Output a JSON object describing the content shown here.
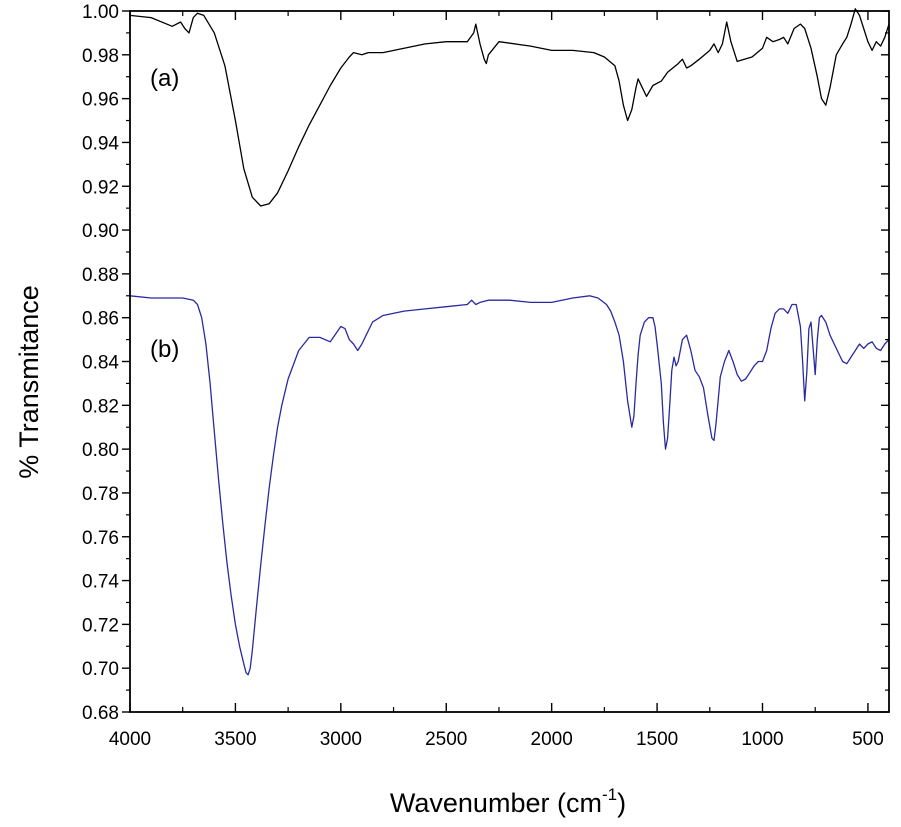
{
  "chart_data": {
    "type": "line",
    "xlabel": "Wavenumber (cm",
    "xlabel_sup": "-1",
    "xlabel_close": ")",
    "ylabel": "% Transmitance",
    "xlim": [
      4000,
      400
    ],
    "ylim": [
      0.68,
      1.0
    ],
    "x_reversed": true,
    "grid": false,
    "x_ticks": [
      4000,
      3500,
      3000,
      2500,
      2000,
      1500,
      1000,
      500
    ],
    "x_tick_labels": [
      "4000",
      "3500",
      "3000",
      "2500",
      "2000",
      "1500",
      "1000",
      "500"
    ],
    "y_ticks": [
      0.68,
      0.7,
      0.72,
      0.74,
      0.76,
      0.78,
      0.8,
      0.82,
      0.84,
      0.86,
      0.88,
      0.9,
      0.92,
      0.94,
      0.96,
      0.98,
      1.0
    ],
    "y_tick_labels": [
      "0.68",
      "0.70",
      "0.72",
      "0.74",
      "0.76",
      "0.78",
      "0.80",
      "0.82",
      "0.84",
      "0.86",
      "0.88",
      "0.90",
      "0.92",
      "0.94",
      "0.96",
      "0.98",
      "1.00"
    ],
    "series": [
      {
        "label": "(a)",
        "color": "#000000",
        "x": [
          4000,
          3900,
          3800,
          3760,
          3740,
          3720,
          3700,
          3680,
          3650,
          3600,
          3550,
          3500,
          3460,
          3420,
          3380,
          3340,
          3300,
          3250,
          3200,
          3150,
          3100,
          3050,
          3000,
          2960,
          2940,
          2900,
          2870,
          2800,
          2700,
          2600,
          2500,
          2400,
          2370,
          2360,
          2340,
          2320,
          2310,
          2300,
          2250,
          2100,
          2000,
          1900,
          1800,
          1750,
          1700,
          1680,
          1660,
          1640,
          1620,
          1600,
          1590,
          1570,
          1550,
          1520,
          1480,
          1450,
          1400,
          1380,
          1360,
          1340,
          1300,
          1250,
          1230,
          1210,
          1190,
          1170,
          1150,
          1120,
          1050,
          1000,
          980,
          950,
          920,
          900,
          880,
          850,
          820,
          800,
          770,
          740,
          720,
          700,
          680,
          650,
          620,
          600,
          580,
          560,
          540,
          520,
          500,
          480,
          460,
          440,
          420,
          400
        ],
        "y": [
          0.998,
          0.997,
          0.993,
          0.995,
          0.992,
          0.99,
          0.997,
          0.999,
          0.998,
          0.99,
          0.975,
          0.95,
          0.928,
          0.915,
          0.911,
          0.912,
          0.917,
          0.927,
          0.938,
          0.948,
          0.957,
          0.966,
          0.974,
          0.979,
          0.981,
          0.98,
          0.981,
          0.981,
          0.983,
          0.985,
          0.986,
          0.986,
          0.99,
          0.994,
          0.985,
          0.978,
          0.976,
          0.98,
          0.986,
          0.984,
          0.982,
          0.982,
          0.981,
          0.979,
          0.975,
          0.968,
          0.957,
          0.95,
          0.955,
          0.965,
          0.969,
          0.965,
          0.961,
          0.966,
          0.968,
          0.972,
          0.976,
          0.978,
          0.974,
          0.975,
          0.978,
          0.982,
          0.985,
          0.981,
          0.985,
          0.995,
          0.986,
          0.977,
          0.979,
          0.983,
          0.988,
          0.986,
          0.987,
          0.988,
          0.985,
          0.992,
          0.994,
          0.992,
          0.983,
          0.97,
          0.96,
          0.957,
          0.965,
          0.98,
          0.985,
          0.988,
          0.994,
          1.001,
          0.998,
          0.992,
          0.986,
          0.982,
          0.986,
          0.984,
          0.988,
          0.994
        ]
      },
      {
        "label": "(b)",
        "color": "#2a2aa0",
        "x": [
          4000,
          3900,
          3800,
          3750,
          3700,
          3680,
          3660,
          3640,
          3620,
          3600,
          3580,
          3560,
          3540,
          3520,
          3500,
          3480,
          3460,
          3450,
          3440,
          3430,
          3420,
          3410,
          3400,
          3380,
          3360,
          3340,
          3320,
          3300,
          3280,
          3250,
          3200,
          3150,
          3100,
          3050,
          3000,
          2980,
          2960,
          2940,
          2920,
          2900,
          2880,
          2860,
          2850,
          2800,
          2700,
          2600,
          2500,
          2400,
          2380,
          2360,
          2340,
          2300,
          2200,
          2100,
          2000,
          1900,
          1820,
          1780,
          1740,
          1720,
          1700,
          1680,
          1660,
          1640,
          1620,
          1610,
          1600,
          1590,
          1580,
          1560,
          1540,
          1520,
          1510,
          1500,
          1480,
          1470,
          1460,
          1450,
          1440,
          1430,
          1420,
          1410,
          1400,
          1380,
          1360,
          1340,
          1320,
          1300,
          1280,
          1260,
          1240,
          1230,
          1220,
          1200,
          1180,
          1160,
          1140,
          1120,
          1100,
          1080,
          1060,
          1040,
          1020,
          1000,
          980,
          960,
          940,
          920,
          900,
          880,
          860,
          840,
          820,
          810,
          800,
          790,
          780,
          770,
          760,
          750,
          740,
          730,
          720,
          700,
          680,
          650,
          620,
          600,
          580,
          560,
          540,
          520,
          500,
          480,
          460,
          440,
          420,
          400
        ],
        "y": [
          0.87,
          0.869,
          0.869,
          0.869,
          0.868,
          0.866,
          0.86,
          0.848,
          0.83,
          0.808,
          0.786,
          0.766,
          0.748,
          0.733,
          0.72,
          0.71,
          0.702,
          0.698,
          0.697,
          0.7,
          0.708,
          0.718,
          0.728,
          0.747,
          0.765,
          0.782,
          0.797,
          0.81,
          0.82,
          0.832,
          0.845,
          0.851,
          0.851,
          0.849,
          0.856,
          0.855,
          0.85,
          0.848,
          0.845,
          0.848,
          0.852,
          0.856,
          0.858,
          0.861,
          0.863,
          0.864,
          0.865,
          0.866,
          0.868,
          0.866,
          0.867,
          0.868,
          0.868,
          0.867,
          0.867,
          0.869,
          0.87,
          0.869,
          0.866,
          0.863,
          0.858,
          0.852,
          0.84,
          0.822,
          0.81,
          0.815,
          0.83,
          0.843,
          0.852,
          0.858,
          0.86,
          0.86,
          0.856,
          0.848,
          0.83,
          0.812,
          0.8,
          0.805,
          0.82,
          0.836,
          0.842,
          0.838,
          0.84,
          0.85,
          0.852,
          0.845,
          0.836,
          0.833,
          0.828,
          0.816,
          0.805,
          0.804,
          0.812,
          0.833,
          0.84,
          0.845,
          0.84,
          0.834,
          0.831,
          0.832,
          0.835,
          0.838,
          0.84,
          0.84,
          0.845,
          0.855,
          0.862,
          0.864,
          0.864,
          0.862,
          0.866,
          0.866,
          0.856,
          0.84,
          0.822,
          0.835,
          0.855,
          0.858,
          0.846,
          0.834,
          0.85,
          0.86,
          0.861,
          0.858,
          0.852,
          0.846,
          0.84,
          0.839,
          0.842,
          0.845,
          0.848,
          0.846,
          0.848,
          0.849,
          0.846,
          0.845,
          0.848,
          0.85
        ]
      }
    ]
  }
}
